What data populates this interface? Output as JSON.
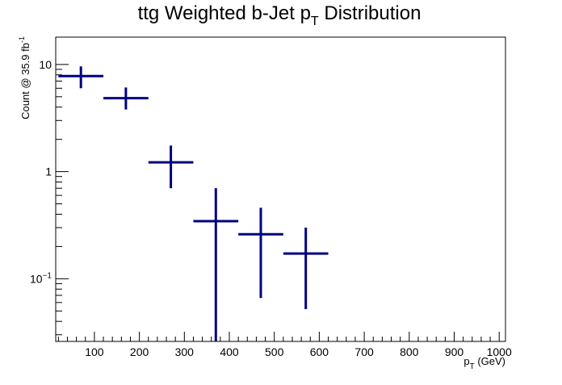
{
  "chart_data": {
    "type": "scatter",
    "title": {
      "main": "ttg Weighted b-Jet p",
      "sub": "T",
      "tail": " Distribution"
    },
    "xlabel": {
      "main": "p",
      "sub": "T",
      "tail": " (GeV)"
    },
    "ylabel": {
      "main": "Count @ 35.9 fb",
      "sup": "-1"
    },
    "x_scale": "linear",
    "y_scale": "log",
    "xlim": [
      14,
      1014
    ],
    "ylim": [
      0.026,
      18
    ],
    "x_ticks": [
      100,
      200,
      300,
      400,
      500,
      600,
      700,
      800,
      900,
      1000
    ],
    "x_tick_labels": [
      "100",
      "200",
      "300",
      "400",
      "500",
      "600",
      "700",
      "800",
      "900",
      "1000"
    ],
    "y_major_ticks": [
      {
        "value": 0.1,
        "base": "10",
        "exp": "−1"
      },
      {
        "value": 1,
        "label": "1"
      },
      {
        "value": 10,
        "label": "10"
      }
    ],
    "grid": false,
    "legend": "none",
    "color": "#000080",
    "points": [
      {
        "x": 70,
        "xlo": 20,
        "xhi": 120,
        "y": 7.8,
        "ylo": 6.0,
        "yhi": 9.6
      },
      {
        "x": 170,
        "xlo": 120,
        "xhi": 220,
        "y": 4.85,
        "ylo": 3.8,
        "yhi": 6.1
      },
      {
        "x": 270,
        "xlo": 220,
        "xhi": 320,
        "y": 1.22,
        "ylo": 0.7,
        "yhi": 1.75
      },
      {
        "x": 370,
        "xlo": 320,
        "xhi": 420,
        "y": 0.345,
        "ylo": 0.026,
        "yhi": 0.7
      },
      {
        "x": 470,
        "xlo": 420,
        "xhi": 520,
        "y": 0.26,
        "ylo": 0.066,
        "yhi": 0.46
      },
      {
        "x": 570,
        "xlo": 520,
        "xhi": 620,
        "y": 0.172,
        "ylo": 0.052,
        "yhi": 0.3
      }
    ]
  }
}
